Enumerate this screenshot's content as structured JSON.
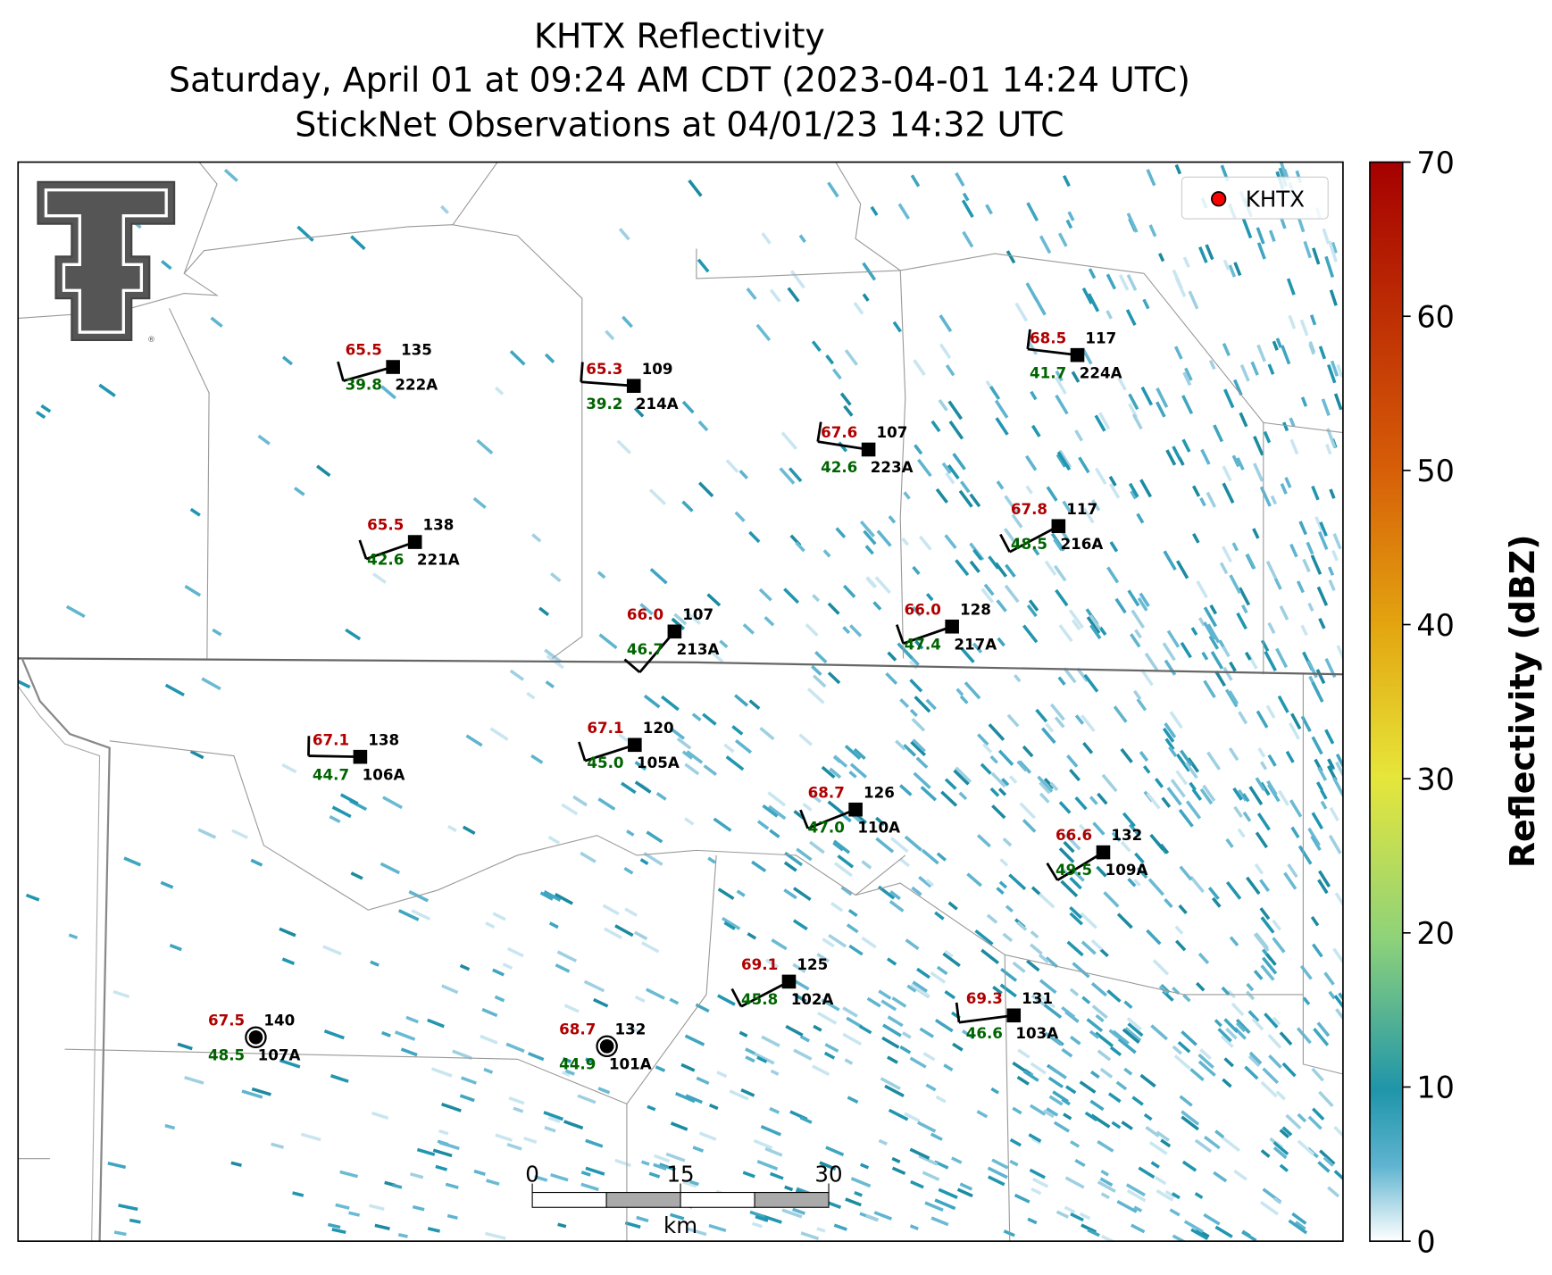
{
  "title": [
    "KHTX Reflectivity",
    "Saturday, April 01 at 09:24 AM CDT (2023-04-01 14:24 UTC)",
    "StickNet Observations at 04/01/23 14:32 UTC"
  ],
  "legend": {
    "label": "KHTX",
    "color": "#ff0000"
  },
  "colorbar": {
    "label": "Reflectivity (dBZ)",
    "lim": [
      0,
      70
    ],
    "ticks": [
      0,
      10,
      20,
      30,
      40,
      50,
      60,
      70
    ]
  },
  "stations": [
    {
      "id": "222A",
      "temperature": "65.5",
      "dewpoint": "39.8",
      "value": "135"
    },
    {
      "id": "214A",
      "temperature": "65.3",
      "dewpoint": "39.2",
      "value": "109"
    },
    {
      "id": "223A",
      "temperature": "67.6",
      "dewpoint": "42.6",
      "value": "107"
    },
    {
      "id": "224A",
      "temperature": "68.5",
      "dewpoint": "41.7",
      "value": "117"
    },
    {
      "id": "221A",
      "temperature": "65.5",
      "dewpoint": "42.6",
      "value": "138"
    },
    {
      "id": "216A",
      "temperature": "67.8",
      "dewpoint": "48.5",
      "value": "117"
    },
    {
      "id": "213A",
      "temperature": "66.0",
      "dewpoint": "46.7",
      "value": "107"
    },
    {
      "id": "217A",
      "temperature": "66.0",
      "dewpoint": "47.4",
      "value": "128"
    },
    {
      "id": "106A",
      "temperature": "67.1",
      "dewpoint": "44.7",
      "value": "138"
    },
    {
      "id": "105A",
      "temperature": "67.1",
      "dewpoint": "45.0",
      "value": "120"
    },
    {
      "id": "110A",
      "temperature": "68.7",
      "dewpoint": "47.0",
      "value": "126"
    },
    {
      "id": "109A",
      "temperature": "66.6",
      "dewpoint": "49.5",
      "value": "132"
    },
    {
      "id": "102A",
      "temperature": "69.1",
      "dewpoint": "45.8",
      "value": "125"
    },
    {
      "id": "103A",
      "temperature": "69.3",
      "dewpoint": "46.6",
      "value": "131"
    },
    {
      "id": "107A",
      "temperature": "67.5",
      "dewpoint": "48.5",
      "value": "140"
    },
    {
      "id": "101A",
      "temperature": "68.7",
      "dewpoint": "44.9",
      "value": "132"
    }
  ],
  "scale_bar": {
    "ticks": [
      0,
      15,
      30
    ],
    "unit": "km"
  }
}
